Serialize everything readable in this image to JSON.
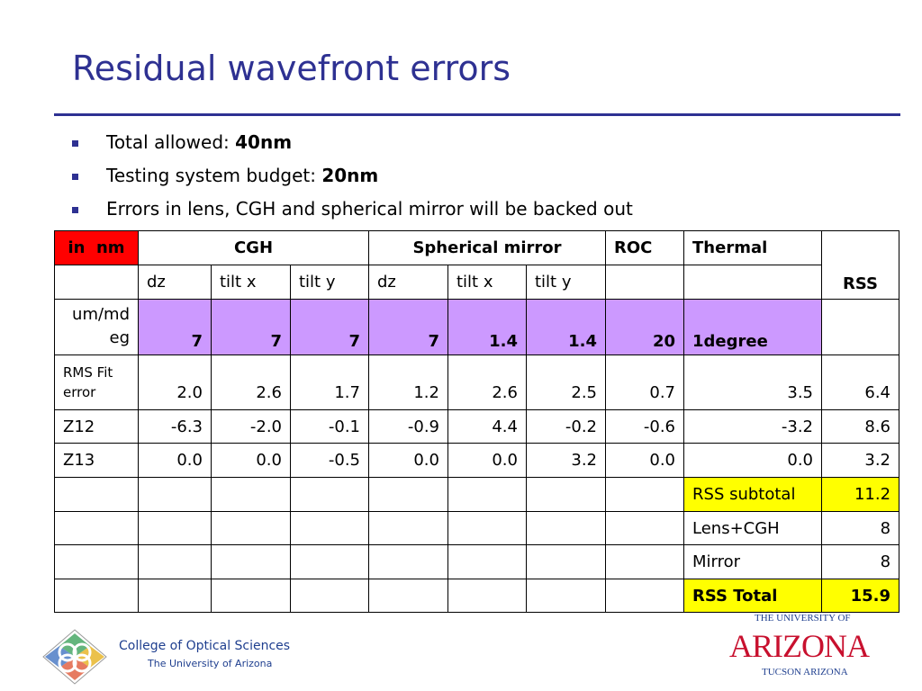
{
  "slide": {
    "title": "Residual wavefront errors",
    "bullets": [
      {
        "text": "Total allowed: ",
        "bold": "40nm"
      },
      {
        "text": "Testing system budget: ",
        "bold": "20nm"
      },
      {
        "text": "Errors in lens, CGH and spherical mirror will be backed out",
        "bold": ""
      }
    ]
  },
  "table": {
    "corner": "in  nm",
    "groups": {
      "cgh": "CGH",
      "mirror": "Spherical mirror",
      "roc": "ROC",
      "thermal": "Thermal",
      "rss": "RSS"
    },
    "sub": [
      "dz",
      "tilt x",
      "tilt y",
      "dz",
      "tilt x",
      "tilt y"
    ],
    "unit_label": "um/md eg",
    "units": [
      "7",
      "7",
      "7",
      "7",
      "1.4",
      "1.4",
      "20",
      "1degree"
    ],
    "rows": [
      {
        "label": "RMS Fit error",
        "values": [
          "2.0",
          "2.6",
          "1.7",
          "1.2",
          "2.6",
          "2.5",
          "0.7",
          "3.5",
          "6.4"
        ]
      },
      {
        "label": "Z12",
        "values": [
          "-6.3",
          "-2.0",
          "-0.1",
          "-0.9",
          "4.4",
          "-0.2",
          "-0.6",
          "-3.2",
          "8.6"
        ]
      },
      {
        "label": "Z13",
        "values": [
          "0.0",
          "0.0",
          "-0.5",
          "0.0",
          "0.0",
          "3.2",
          "0.0",
          "0.0",
          "3.2"
        ]
      }
    ],
    "summary": [
      {
        "label": "RSS subtotal",
        "value": "11.2"
      },
      {
        "label": "Lens+CGH",
        "value": "8"
      },
      {
        "label": "Mirror",
        "value": "8"
      },
      {
        "label": "RSS Total",
        "value": "15.9"
      }
    ]
  },
  "footer": {
    "college": "College of Optical Sciences",
    "university": "The University of Arizona",
    "ua_line1": "THE UNIVERSITY OF",
    "ua_name": "ARIZONA",
    "ua_line2": "TUCSON ARIZONA"
  },
  "colors": {
    "title": "#2E3192",
    "corner": "#FF0000",
    "units_fill": "#CC99FF",
    "highlight": "#FFFF00"
  }
}
